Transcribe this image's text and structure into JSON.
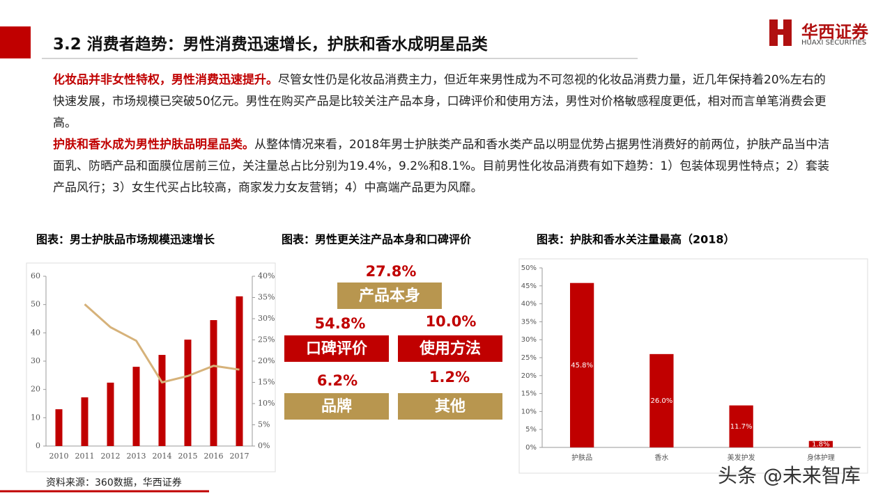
{
  "header": {
    "title": "3.2 消费者趋势：男性消费迅速增长，护肤和香水成明星品类",
    "logo_cn": "华西证券",
    "logo_en": "HUAXI SECURITIES"
  },
  "paragraphs": [
    {
      "lead": "化妆品并非女性特权，男性消费迅速提升。",
      "text": "尽管女性仍是化妆品消费主力，但近年来男性成为不可忽视的化妆品消费力量，近几年保持着20%左右的快速发展，市场规模已突破50亿元。男性在购买产品是比较关注产品本身，口碑评价和使用方法，男性对价格敏感程度更低，相对而言单笔消费会更高。"
    },
    {
      "lead": "护肤和香水成为男性护肤品明星品类。",
      "text": "从整体情况来看，2018年男士护肤类产品和香水类产品以明显优势占据男性消费好的前两位，护肤产品当中洁面乳、防晒产品和面膜位居前三位，关注量总占比分别为19.4%，9.2%和8.1%。目前男性化妆品消费有如下趋势：1）包装体现男性特点；2）套装产品风行；3）女生代买占比较高，商家发力女友营销；4）中高端产品更为风靡。"
    }
  ],
  "chart_data": [
    {
      "type": "bar",
      "title": "图表：男士护肤品市场规模迅速增长",
      "categories": [
        "2010",
        "2011",
        "2012",
        "2013",
        "2014",
        "2015",
        "2016",
        "2017"
      ],
      "series": [
        {
          "color": "#c00000",
          "values": [
            13,
            17.2,
            22.4,
            28,
            32.2,
            37.6,
            44.5,
            52.9
          ]
        },
        {
          "type": "line",
          "axis": "y2",
          "color": "#d6b27a",
          "values": [
            null,
            33.4,
            28,
            24.8,
            15,
            16.5,
            18.9,
            18
          ]
        }
      ],
      "ylim": [
        0,
        60
      ],
      "yticks": [
        0,
        10,
        20,
        30,
        40,
        50,
        60
      ],
      "y2lim": [
        0,
        40
      ],
      "y2ticks": [
        {
          "value": 0,
          "label": "0%"
        },
        {
          "value": 5,
          "label": "5%"
        },
        {
          "value": 10,
          "label": "10%"
        },
        {
          "value": 15,
          "label": "15%"
        },
        {
          "value": 20,
          "label": "20%"
        },
        {
          "value": 25,
          "label": "25%"
        },
        {
          "value": 30,
          "label": "30%"
        },
        {
          "value": 35,
          "label": "35%"
        },
        {
          "value": 40,
          "label": "40%"
        }
      ],
      "grid": false
    },
    {
      "type": "bar",
      "title": "图表：护肤和香水关注量最高（2018）",
      "categories": [
        "护肤品",
        "香水",
        "美发护发",
        "身体护理"
      ],
      "series": [
        {
          "color": "#c00000",
          "values": [
            45.8,
            26.0,
            11.7,
            1.8
          ],
          "value_labels": [
            "45.8%",
            "26.0%",
            "11.7%",
            "1.8%"
          ]
        }
      ],
      "ylim": [
        0,
        50
      ],
      "yticks": [
        {
          "value": 0,
          "label": "0%"
        },
        {
          "value": 5,
          "label": "5%"
        },
        {
          "value": 10,
          "label": "10%"
        },
        {
          "value": 15,
          "label": "15%"
        },
        {
          "value": 20,
          "label": "20%"
        },
        {
          "value": 25,
          "label": "25%"
        },
        {
          "value": 30,
          "label": "30%"
        },
        {
          "value": 35,
          "label": "35%"
        },
        {
          "value": 40,
          "label": "40%"
        },
        {
          "value": 45,
          "label": "45%"
        },
        {
          "value": 50,
          "label": "50%"
        }
      ],
      "grid": false
    }
  ],
  "diagram": {
    "title": "图表：男性更关注产品本身和口碑评价",
    "items": [
      {
        "label": "产品本身",
        "value": "27.8%",
        "color": "#b8964f"
      },
      {
        "label": "口碑评价",
        "value": "54.8%",
        "color": "#c00000"
      },
      {
        "label": "使用方法",
        "value": "10.0%",
        "color": "#c00000"
      },
      {
        "label": "品牌",
        "value": "6.2%",
        "color": "#b8964f"
      },
      {
        "label": "其他",
        "value": "1.2%",
        "color": "#b8964f"
      }
    ]
  },
  "source": "资料来源：360数据，华西证券",
  "watermark": "头条 @未来智库"
}
